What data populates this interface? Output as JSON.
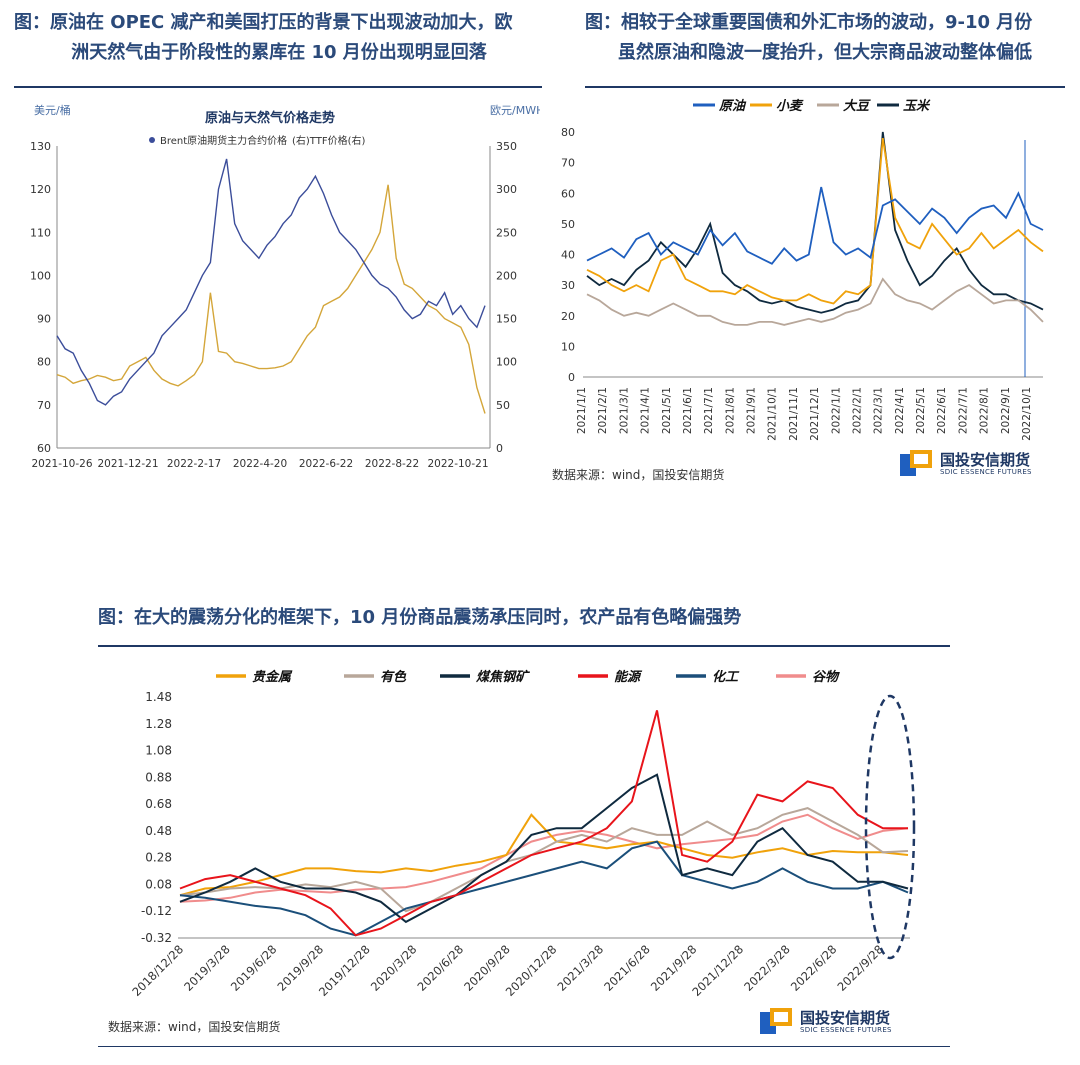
{
  "captions": {
    "c1_line1": "图：原油在 OPEC 减产和美国打压的背景下出现波动加大，欧",
    "c1_line2": "洲天然气由于阶段性的累库在 10 月份出现明显回落",
    "c2_line1": "图：相较于全球重要国债和外汇市场的波动，9-10 月份",
    "c2_line2": "虽然原油和隐波一度抬升，但大宗商品波动整体偏低",
    "c3": "图：在大的震荡分化的框架下，10 月份商品震荡承压同时，农产品有色略偏强势"
  },
  "source_text": "数据来源：wind，国投安信期货",
  "logo": {
    "name": "国投安信期货",
    "en": "SDIC ESSENCE FUTURES"
  },
  "colors": {
    "navy": "#1f3864",
    "accent": "#f0a20b"
  },
  "chart_data": [
    {
      "type": "line",
      "title": "原油与天然气价格走势",
      "ylabel_left": "美元/桶",
      "ylabel_right": "欧元/MWH",
      "legend": [
        "Brent原油期货主力合约价格",
        "(右)TTF价格(右)"
      ],
      "ylim_left": [
        60,
        130
      ],
      "ylim_right": [
        0,
        350
      ],
      "left_ticks": [
        "130",
        "120",
        "110",
        "100",
        "90",
        "80",
        "70",
        "60"
      ],
      "right_ticks": [
        "350",
        "300",
        "250",
        "200",
        "150",
        "100",
        "50",
        "0"
      ],
      "x_ticks": [
        "2021-10-26",
        "2021-12-21",
        "2022-2-17",
        "2022-4-20",
        "2022-6-22",
        "2022-8-22",
        "2022-10-21"
      ],
      "series": [
        {
          "name": "Brent",
          "color": "#3b4d9a",
          "values": [
            86,
            83,
            82,
            78,
            75,
            71,
            70,
            72,
            73,
            76,
            78,
            80,
            82,
            86,
            88,
            90,
            92,
            96,
            100,
            103,
            120,
            127,
            112,
            108,
            106,
            104,
            107,
            109,
            112,
            114,
            118,
            120,
            123,
            119,
            114,
            110,
            108,
            106,
            103,
            100,
            98,
            97,
            95,
            92,
            90,
            91,
            94,
            93,
            96,
            91,
            93,
            90,
            88,
            93
          ]
        },
        {
          "name": "TTF",
          "color": "#d4a63a",
          "values": [
            85,
            82,
            75,
            78,
            80,
            84,
            82,
            78,
            80,
            95,
            100,
            105,
            90,
            80,
            75,
            72,
            78,
            85,
            100,
            180,
            112,
            110,
            100,
            98,
            95,
            92,
            92,
            93,
            95,
            100,
            115,
            130,
            140,
            165,
            170,
            175,
            185,
            200,
            215,
            230,
            250,
            305,
            220,
            190,
            185,
            175,
            165,
            160,
            150,
            145,
            140,
            120,
            70,
            40
          ]
        }
      ]
    },
    {
      "type": "line",
      "title": "",
      "legend": [
        "原油",
        "小麦",
        "大豆",
        "玉米"
      ],
      "ylim": [
        0,
        80
      ],
      "y_ticks": [
        "80",
        "70",
        "60",
        "50",
        "40",
        "30",
        "20",
        "10",
        "0"
      ],
      "x_ticks": [
        "2021/1/1",
        "2021/2/1",
        "2021/3/1",
        "2021/4/1",
        "2021/5/1",
        "2021/6/1",
        "2021/7/1",
        "2021/8/1",
        "2021/9/1",
        "2021/10/1",
        "2021/11/1",
        "2021/12/1",
        "2022/1/1",
        "2022/2/1",
        "2022/3/1",
        "2022/4/1",
        "2022/5/1",
        "2022/6/1",
        "2022/7/1",
        "2022/8/1",
        "2022/9/1",
        "2022/10/1"
      ],
      "series": [
        {
          "name": "原油",
          "color": "#1f5fbf",
          "values": [
            38,
            40,
            42,
            39,
            45,
            47,
            40,
            44,
            42,
            40,
            48,
            43,
            47,
            41,
            39,
            37,
            42,
            38,
            40,
            62,
            44,
            40,
            42,
            39,
            56,
            58,
            54,
            50,
            55,
            52,
            47,
            52,
            55,
            56,
            52,
            60,
            50,
            48
          ]
        },
        {
          "name": "小麦",
          "color": "#f0a20b",
          "values": [
            35,
            33,
            30,
            28,
            30,
            28,
            38,
            40,
            32,
            30,
            28,
            28,
            27,
            30,
            28,
            26,
            25,
            25,
            27,
            25,
            24,
            28,
            27,
            30,
            78,
            52,
            44,
            42,
            50,
            45,
            40,
            42,
            47,
            42,
            45,
            48,
            44,
            41
          ]
        },
        {
          "name": "大豆",
          "color": "#b8a79a",
          "values": [
            27,
            25,
            22,
            20,
            21,
            20,
            22,
            24,
            22,
            20,
            20,
            18,
            17,
            17,
            18,
            18,
            17,
            18,
            19,
            18,
            19,
            21,
            22,
            24,
            32,
            27,
            25,
            24,
            22,
            25,
            28,
            30,
            27,
            24,
            25,
            25,
            22,
            18
          ]
        },
        {
          "name": "玉米",
          "color": "#0f2a3f",
          "values": [
            33,
            30,
            32,
            30,
            35,
            38,
            44,
            40,
            36,
            42,
            50,
            34,
            30,
            28,
            25,
            24,
            25,
            23,
            22,
            21,
            22,
            24,
            25,
            30,
            80,
            48,
            38,
            30,
            33,
            38,
            42,
            35,
            30,
            27,
            27,
            25,
            24,
            22
          ]
        }
      ]
    },
    {
      "type": "line",
      "title": "",
      "legend": [
        "贵金属",
        "有色",
        "煤焦钢矿",
        "能源",
        "化工",
        "谷物"
      ],
      "ylim": [
        -0.32,
        1.48
      ],
      "y_ticks": [
        "1.48",
        "1.28",
        "1.08",
        "0.88",
        "0.68",
        "0.48",
        "0.28",
        "0.08",
        "-0.12",
        "-0.32"
      ],
      "x_ticks": [
        "2018/12/28",
        "2019/3/28",
        "2019/6/28",
        "2019/9/28",
        "2019/12/28",
        "2020/3/28",
        "2020/6/28",
        "2020/9/28",
        "2020/12/28",
        "2021/3/28",
        "2021/6/28",
        "2021/9/28",
        "2021/12/28",
        "2022/3/28",
        "2022/6/28",
        "2022/9/28"
      ],
      "series": [
        {
          "name": "贵金属",
          "color": "#f0a20b",
          "values": [
            0.0,
            0.05,
            0.06,
            0.1,
            0.15,
            0.2,
            0.2,
            0.18,
            0.17,
            0.2,
            0.18,
            0.22,
            0.25,
            0.3,
            0.6,
            0.4,
            0.38,
            0.35,
            0.38,
            0.4,
            0.35,
            0.3,
            0.28,
            0.32,
            0.35,
            0.3,
            0.33,
            0.32,
            0.32,
            0.3
          ]
        },
        {
          "name": "有色",
          "color": "#b8a79a",
          "values": [
            0.0,
            0.02,
            0.05,
            0.06,
            0.05,
            0.08,
            0.06,
            0.1,
            0.05,
            -0.12,
            -0.05,
            0.05,
            0.15,
            0.25,
            0.3,
            0.4,
            0.45,
            0.4,
            0.5,
            0.45,
            0.45,
            0.55,
            0.45,
            0.5,
            0.6,
            0.65,
            0.55,
            0.45,
            0.32,
            0.33
          ]
        },
        {
          "name": "煤焦钢矿",
          "color": "#0f2a3f",
          "values": [
            -0.05,
            0.02,
            0.1,
            0.2,
            0.1,
            0.05,
            0.05,
            0.02,
            -0.05,
            -0.2,
            -0.1,
            0.0,
            0.15,
            0.25,
            0.45,
            0.5,
            0.5,
            0.65,
            0.8,
            0.9,
            0.15,
            0.2,
            0.15,
            0.4,
            0.5,
            0.3,
            0.25,
            0.1,
            0.1,
            0.05
          ]
        },
        {
          "name": "能源",
          "color": "#e8141b",
          "values": [
            0.05,
            0.12,
            0.15,
            0.1,
            0.05,
            0.0,
            -0.1,
            -0.3,
            -0.25,
            -0.15,
            -0.05,
            0.0,
            0.1,
            0.2,
            0.3,
            0.35,
            0.4,
            0.5,
            0.7,
            1.38,
            0.3,
            0.25,
            0.4,
            0.75,
            0.7,
            0.85,
            0.8,
            0.6,
            0.5,
            0.5
          ]
        },
        {
          "name": "化工",
          "color": "#1b4f7a",
          "values": [
            0.0,
            -0.02,
            -0.05,
            -0.08,
            -0.1,
            -0.15,
            -0.25,
            -0.3,
            -0.2,
            -0.1,
            -0.05,
            0.0,
            0.05,
            0.1,
            0.15,
            0.2,
            0.25,
            0.2,
            0.35,
            0.4,
            0.15,
            0.1,
            0.05,
            0.1,
            0.2,
            0.1,
            0.05,
            0.05,
            0.1,
            0.02
          ]
        },
        {
          "name": "谷物",
          "color": "#f08c8c",
          "values": [
            -0.05,
            -0.04,
            -0.02,
            0.02,
            0.04,
            0.03,
            0.02,
            0.04,
            0.05,
            0.06,
            0.1,
            0.15,
            0.2,
            0.3,
            0.4,
            0.45,
            0.48,
            0.45,
            0.4,
            0.35,
            0.38,
            0.4,
            0.42,
            0.45,
            0.55,
            0.6,
            0.5,
            0.42,
            0.48,
            0.5
          ]
        }
      ]
    }
  ]
}
